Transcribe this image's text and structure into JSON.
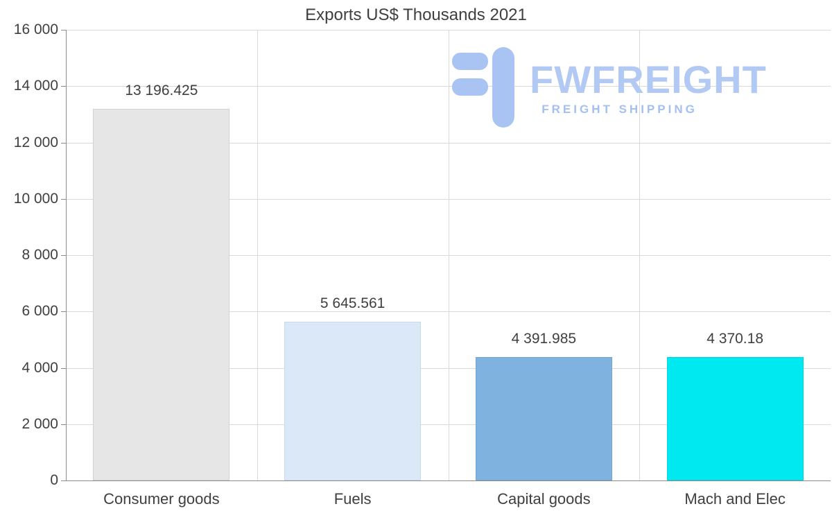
{
  "chart_data": {
    "type": "bar",
    "title": "Exports US$ Thousands 2021",
    "categories": [
      "Consumer goods",
      "Fuels",
      "Capital goods",
      "Mach and Elec"
    ],
    "values": [
      13196.425,
      5645.561,
      4391.985,
      4370.18
    ],
    "value_labels": [
      "13 196.425",
      "5 645.561",
      "4 391.985",
      "4 370.18"
    ],
    "bar_colors": [
      "#e6e6e6",
      "#dbe8f7",
      "#7fb2de",
      "#00e8f0"
    ],
    "bar_border_colors": [
      "#d2d2d2",
      "#c5d9ef",
      "#6fa6d6",
      "#00d6e3"
    ],
    "xlabel": "",
    "ylabel": "",
    "ylim": [
      0,
      16000
    ],
    "ytick_step": 2000,
    "ytick_labels": [
      "0",
      "2 000",
      "4 000",
      "6 000",
      "8 000",
      "10 000",
      "12 000",
      "14 000",
      "16 000"
    ],
    "grid": "horizontal and vertical category separators, light gray",
    "legend": "none"
  },
  "logo": {
    "brand": "FWFREIGHT",
    "tagline": "FREIGHT SHIPPING",
    "icon": "freight-logo-icon",
    "icon_color": "#a9c4f3",
    "brand_color": "#b2c9f4",
    "tagline_color": "#a4bff2"
  },
  "colors": {
    "background": "#ffffff",
    "text": "#3f3f3f",
    "gridline": "#d9d9d9",
    "axis": "#8c8c8c"
  }
}
